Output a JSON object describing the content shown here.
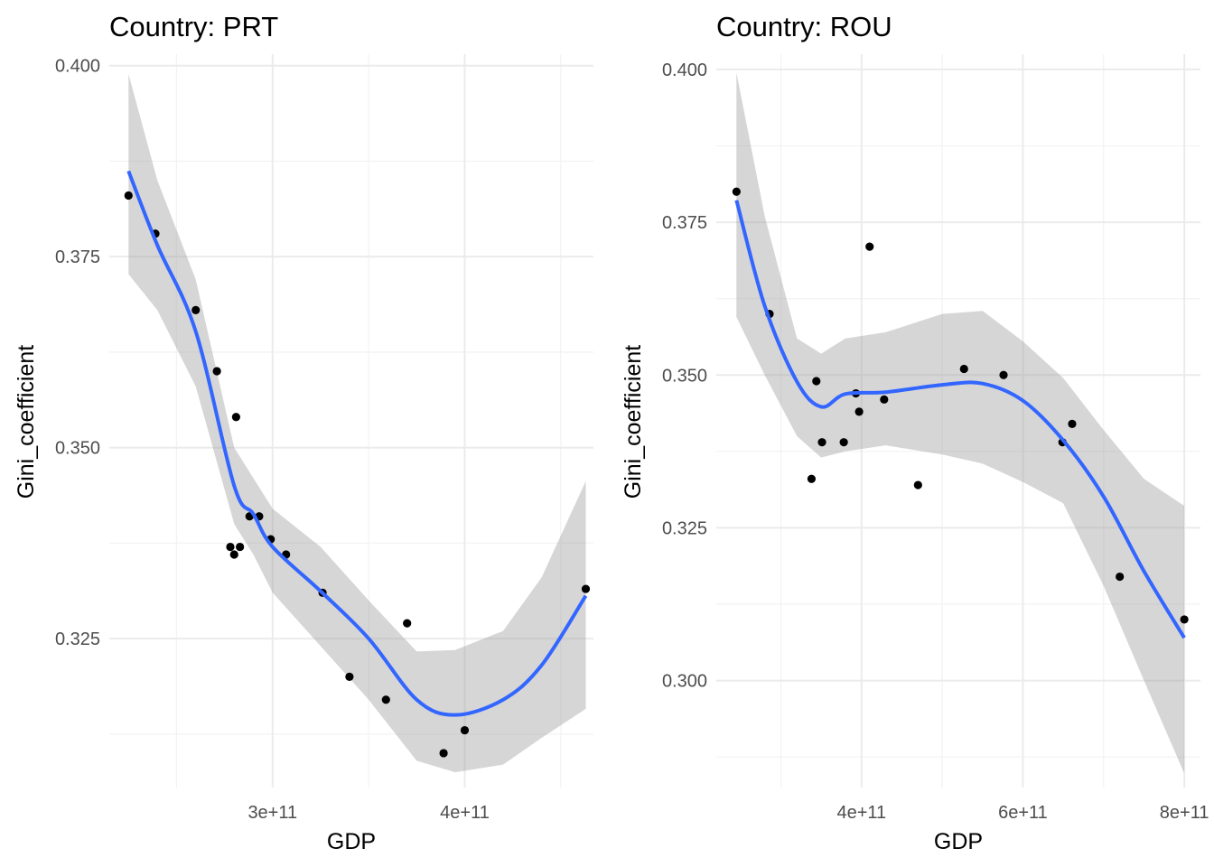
{
  "chart_data": [
    {
      "type": "scatter",
      "panel": "left",
      "title": "Country: PRT",
      "xlabel": "GDP",
      "ylabel": "Gini_coefficient",
      "x_unit": 100000000000.0,
      "xlim": [
        2.15,
        4.67
      ],
      "ylim": [
        0.3055,
        0.4015
      ],
      "x_ticks": [
        {
          "value": 3,
          "label": "3e+11"
        },
        {
          "value": 4,
          "label": "4e+11"
        }
      ],
      "x_minor": [
        2.5,
        3.5,
        4.5
      ],
      "y_ticks": [
        {
          "value": 0.4,
          "label": "0.400"
        },
        {
          "value": 0.375,
          "label": "0.375"
        },
        {
          "value": 0.35,
          "label": "0.350"
        },
        {
          "value": 0.325,
          "label": "0.325"
        }
      ],
      "y_minor": [
        0.3875,
        0.3625,
        0.3375,
        0.3125
      ],
      "grid": true,
      "points": [
        {
          "x": 2.25,
          "y": 0.383
        },
        {
          "x": 2.39,
          "y": 0.378
        },
        {
          "x": 2.6,
          "y": 0.368
        },
        {
          "x": 2.71,
          "y": 0.36
        },
        {
          "x": 2.81,
          "y": 0.354
        },
        {
          "x": 2.78,
          "y": 0.337
        },
        {
          "x": 2.83,
          "y": 0.337
        },
        {
          "x": 2.8,
          "y": 0.336
        },
        {
          "x": 2.88,
          "y": 0.341
        },
        {
          "x": 2.93,
          "y": 0.341
        },
        {
          "x": 2.99,
          "y": 0.338
        },
        {
          "x": 3.07,
          "y": 0.336
        },
        {
          "x": 3.26,
          "y": 0.331
        },
        {
          "x": 3.4,
          "y": 0.32
        },
        {
          "x": 3.59,
          "y": 0.317
        },
        {
          "x": 3.7,
          "y": 0.327
        },
        {
          "x": 3.89,
          "y": 0.31
        },
        {
          "x": 4.0,
          "y": 0.313
        },
        {
          "x": 4.63,
          "y": 0.3315
        }
      ],
      "smooth": {
        "method": "loess",
        "color": "#3366ff",
        "ribbon_color": "#999999",
        "x": [
          2.25,
          2.4,
          2.6,
          2.8,
          2.9,
          3.0,
          3.25,
          3.5,
          3.75,
          3.95,
          4.2,
          4.4,
          4.63
        ],
        "y": [
          0.3862,
          0.3765,
          0.3652,
          0.345,
          0.3413,
          0.337,
          0.3312,
          0.325,
          0.317,
          0.315,
          0.317,
          0.3215,
          0.3306
        ],
        "upper": [
          0.3989,
          0.385,
          0.372,
          0.35,
          0.346,
          0.342,
          0.337,
          0.33,
          0.3233,
          0.3235,
          0.326,
          0.333,
          0.3456
        ],
        "lower": [
          0.3727,
          0.368,
          0.358,
          0.34,
          0.336,
          0.331,
          0.324,
          0.317,
          0.309,
          0.3075,
          0.3085,
          0.312,
          0.3158
        ]
      }
    },
    {
      "type": "scatter",
      "panel": "right",
      "title": "Country: ROU",
      "xlabel": "GDP",
      "ylabel": "Gini_coefficient",
      "x_unit": 100000000000.0,
      "xlim": [
        2.2,
        8.2
      ],
      "ylim": [
        0.2825,
        0.4025
      ],
      "x_ticks": [
        {
          "value": 4,
          "label": "4e+11"
        },
        {
          "value": 6,
          "label": "6e+11"
        },
        {
          "value": 8,
          "label": "8e+11"
        }
      ],
      "x_minor": [
        3,
        5,
        7
      ],
      "y_ticks": [
        {
          "value": 0.4,
          "label": "0.400"
        },
        {
          "value": 0.375,
          "label": "0.375"
        },
        {
          "value": 0.35,
          "label": "0.350"
        },
        {
          "value": 0.325,
          "label": "0.325"
        },
        {
          "value": 0.3,
          "label": "0.300"
        }
      ],
      "y_minor": [
        0.3875,
        0.3625,
        0.3375,
        0.3125,
        0.2875
      ],
      "grid": true,
      "points": [
        {
          "x": 2.45,
          "y": 0.38
        },
        {
          "x": 2.86,
          "y": 0.36
        },
        {
          "x": 3.38,
          "y": 0.333
        },
        {
          "x": 3.44,
          "y": 0.349
        },
        {
          "x": 3.51,
          "y": 0.339
        },
        {
          "x": 3.78,
          "y": 0.339
        },
        {
          "x": 3.93,
          "y": 0.347
        },
        {
          "x": 3.97,
          "y": 0.344
        },
        {
          "x": 4.1,
          "y": 0.371
        },
        {
          "x": 4.28,
          "y": 0.346
        },
        {
          "x": 4.7,
          "y": 0.332
        },
        {
          "x": 5.27,
          "y": 0.351
        },
        {
          "x": 5.76,
          "y": 0.35
        },
        {
          "x": 6.49,
          "y": 0.339
        },
        {
          "x": 6.61,
          "y": 0.342
        },
        {
          "x": 7.2,
          "y": 0.317
        },
        {
          "x": 8.0,
          "y": 0.31
        }
      ],
      "smooth": {
        "method": "loess",
        "color": "#3366ff",
        "ribbon_color": "#999999",
        "x": [
          2.45,
          2.8,
          3.2,
          3.5,
          3.8,
          4.3,
          5.0,
          5.5,
          6.0,
          6.5,
          7.0,
          7.5,
          8.0
        ],
        "y": [
          0.3786,
          0.3613,
          0.3489,
          0.3448,
          0.3469,
          0.3472,
          0.3484,
          0.3486,
          0.3458,
          0.3393,
          0.3301,
          0.3179,
          0.307
        ],
        "upper": [
          0.3995,
          0.376,
          0.356,
          0.3535,
          0.356,
          0.357,
          0.36,
          0.3605,
          0.3555,
          0.3495,
          0.341,
          0.333,
          0.3286
        ],
        "lower": [
          0.3595,
          0.35,
          0.34,
          0.3365,
          0.3375,
          0.3385,
          0.337,
          0.3355,
          0.3325,
          0.329,
          0.3155,
          0.3,
          0.2848
        ]
      }
    }
  ]
}
